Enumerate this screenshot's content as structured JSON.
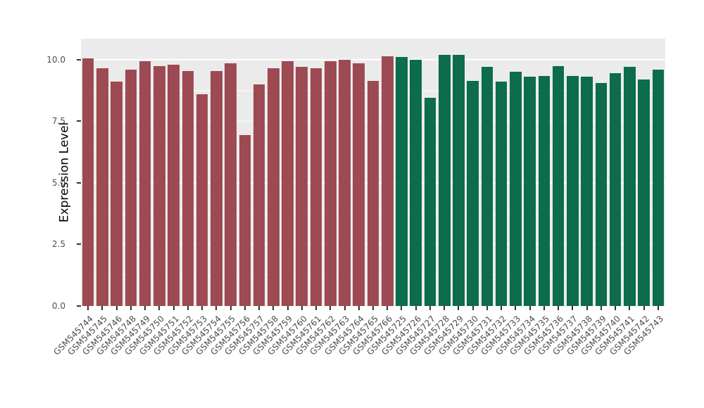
{
  "chart": {
    "panel_bg": "#EBEBEB",
    "grid_color": "#FFFFFF",
    "tick_color": "#333333",
    "axis_text_color": "#4D4D4D",
    "y_ticks": [
      {
        "value": 0.0,
        "label": "0.0"
      },
      {
        "value": 2.5,
        "label": "2.5"
      },
      {
        "value": 5.0,
        "label": "5.0"
      },
      {
        "value": 7.5,
        "label": "7.5"
      },
      {
        "value": 10.0,
        "label": "10.0"
      }
    ],
    "y_minor_ticks": [
      1.25,
      3.75,
      6.25,
      8.75
    ]
  },
  "chart_data": {
    "type": "bar",
    "title": "",
    "xlabel": "",
    "ylabel": "Expression Level",
    "ylim": [
      0,
      10.85
    ],
    "legend": "none",
    "grid": true,
    "group_colors": [
      "#9E4A52",
      "#0C6C4C"
    ],
    "categories": [
      "GSM545744",
      "GSM545745",
      "GSM545746",
      "GSM545748",
      "GSM545749",
      "GSM545750",
      "GSM545751",
      "GSM545752",
      "GSM545753",
      "GSM545754",
      "GSM545755",
      "GSM545756",
      "GSM545757",
      "GSM545758",
      "GSM545759",
      "GSM545760",
      "GSM545761",
      "GSM545762",
      "GSM545763",
      "GSM545764",
      "GSM545765",
      "GSM545766",
      "GSM545725",
      "GSM545726",
      "GSM545727",
      "GSM545728",
      "GSM545729",
      "GSM545730",
      "GSM545731",
      "GSM545732",
      "GSM545733",
      "GSM545734",
      "GSM545735",
      "GSM545736",
      "GSM545737",
      "GSM545738",
      "GSM545739",
      "GSM545740",
      "GSM545741",
      "GSM545742",
      "GSM545743"
    ],
    "values": [
      10.05,
      9.65,
      9.1,
      9.6,
      9.95,
      9.75,
      9.8,
      9.55,
      8.6,
      9.55,
      9.85,
      6.95,
      9.0,
      9.65,
      9.95,
      9.7,
      9.65,
      9.95,
      10.0,
      9.85,
      9.15,
      10.15,
      10.1,
      10.0,
      8.45,
      10.2,
      10.2,
      9.15,
      9.7,
      9.1,
      9.5,
      9.3,
      9.35,
      9.75,
      9.35,
      9.3,
      9.05,
      9.45,
      9.7,
      9.2,
      9.6
    ],
    "groups": [
      0,
      0,
      0,
      0,
      0,
      0,
      0,
      0,
      0,
      0,
      0,
      0,
      0,
      0,
      0,
      0,
      0,
      0,
      0,
      0,
      0,
      0,
      1,
      1,
      1,
      1,
      1,
      1,
      1,
      1,
      1,
      1,
      1,
      1,
      1,
      1,
      1,
      1,
      1,
      1,
      1
    ]
  }
}
